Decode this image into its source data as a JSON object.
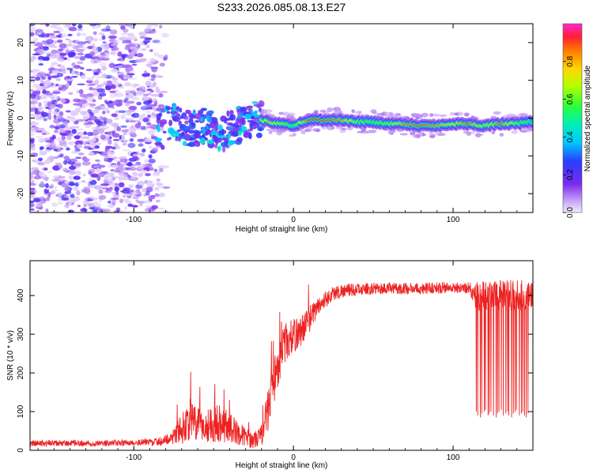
{
  "title": "S233.2026.085.08.13.E27",
  "chart_data": [
    {
      "type": "heatmap",
      "name": "spectrogram",
      "xlabel": "Height of straight line (km)",
      "ylabel": "Frequency (Hz)",
      "xlim": [
        -165,
        150
      ],
      "ylim": [
        -25,
        25
      ],
      "xticks": [
        -100,
        0,
        100
      ],
      "xtick_labels": [
        "-100",
        "0",
        "100"
      ],
      "yticks": [
        -20,
        -10,
        0,
        10,
        20
      ],
      "ytick_labels": [
        "-20",
        "-10",
        "0",
        "10",
        "20"
      ],
      "noise_region_x": [
        -165,
        -80
      ],
      "turbulent_region_x": [
        -85,
        -20
      ],
      "carrier": {
        "x": [
          -85,
          -75,
          -65,
          -55,
          -45,
          -35,
          -25,
          -15,
          -5,
          0,
          10,
          20,
          30,
          40,
          50,
          60,
          70,
          80,
          90,
          100,
          110,
          120,
          130,
          140,
          150
        ],
        "freq": [
          -2,
          -1,
          -3,
          -2,
          -4,
          -2,
          0,
          -1,
          -1.5,
          -2,
          -0.5,
          -0.5,
          -0.5,
          -1,
          -1,
          -1.5,
          -1.5,
          -2,
          -2,
          -1.5,
          -1.5,
          -2,
          -1.5,
          -1.5,
          -1
        ],
        "amplitude": [
          0.25,
          0.3,
          0.3,
          0.25,
          0.25,
          0.3,
          0.4,
          0.8,
          0.6,
          0.5,
          0.9,
          0.9,
          0.85,
          0.6,
          0.55,
          0.6,
          0.85,
          0.9,
          0.85,
          0.7,
          0.9,
          0.6,
          0.9,
          0.6,
          0.5
        ]
      },
      "colorbar": {
        "label": "Normalized spectral amplitude",
        "range": [
          0,
          1
        ],
        "ticks": [
          0.0,
          0.2,
          0.4,
          0.6,
          0.8
        ],
        "tick_labels": [
          "0.0",
          "0.2",
          "0.4",
          "0.6",
          "0.8"
        ]
      }
    },
    {
      "type": "line",
      "name": "snr",
      "xlabel": "Height of straight line (km)",
      "ylabel": "SNR (10 * v/v)",
      "xlim": [
        -165,
        150
      ],
      "ylim": [
        0,
        490
      ],
      "xticks": [
        -100,
        0,
        100
      ],
      "xtick_labels": [
        "-100",
        "0",
        "100"
      ],
      "yticks": [
        0,
        100,
        200,
        300,
        400
      ],
      "ytick_labels": [
        "0",
        "100",
        "200",
        "300",
        "400"
      ],
      "color": "#ee2222",
      "series": [
        {
          "name": "SNR",
          "x": [
            -165,
            -140,
            -120,
            -100,
            -85,
            -78,
            -70,
            -65,
            -60,
            -55,
            -50,
            -45,
            -40,
            -35,
            -30,
            -25,
            -20,
            -15,
            -10,
            -5,
            0,
            5,
            10,
            15,
            20,
            25,
            30,
            40,
            50,
            60,
            70,
            80,
            90,
            100,
            110,
            114,
            120,
            130,
            140,
            150
          ],
          "values": [
            18,
            18,
            18,
            20,
            22,
            30,
            55,
            80,
            65,
            60,
            75,
            70,
            60,
            45,
            35,
            25,
            40,
            120,
            220,
            280,
            295,
            310,
            340,
            370,
            390,
            405,
            412,
            415,
            418,
            418,
            418,
            418,
            420,
            420,
            420,
            400,
            400,
            400,
            400,
            400
          ],
          "spread": [
            8,
            8,
            8,
            8,
            10,
            14,
            40,
            55,
            45,
            40,
            55,
            50,
            40,
            30,
            25,
            20,
            30,
            60,
            60,
            50,
            45,
            40,
            35,
            25,
            22,
            20,
            18,
            16,
            15,
            15,
            15,
            15,
            15,
            15,
            15,
            40,
            40,
            40,
            40,
            40
          ]
        }
      ],
      "dropouts": {
        "x_range": [
          114,
          148
        ],
        "count": 28,
        "floor_values": [
          100,
          90,
          85,
          95,
          100,
          105,
          90,
          95
        ]
      }
    }
  ]
}
